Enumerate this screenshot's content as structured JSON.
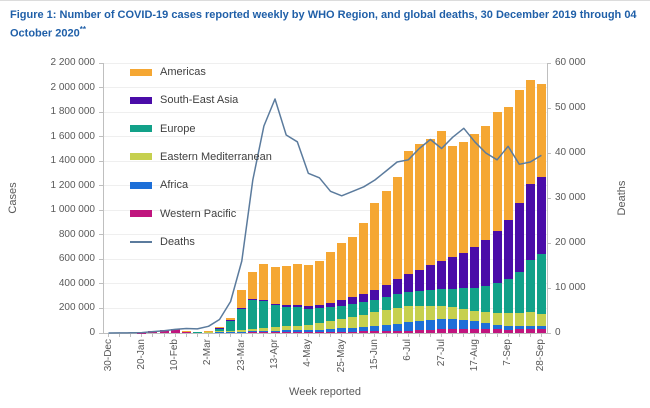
{
  "figure": {
    "title": "Figure 1: Number of COVID-19 cases reported weekly by WHO Region, and global deaths, 30 December 2019 through 04 October 2020",
    "title_superscript": "**",
    "title_color": "#1F5FA8"
  },
  "chart_data": {
    "type": "bar",
    "stacked": true,
    "title": "Number of COVID-19 cases reported weekly by WHO Region, and global deaths",
    "xlabel": "Week reported",
    "ylabel_left": "Cases",
    "ylabel_right": "Deaths",
    "ylim_left": [
      0,
      2200000
    ],
    "yticks_left": [
      0,
      200000,
      400000,
      600000,
      800000,
      1000000,
      1200000,
      1400000,
      1600000,
      1800000,
      2000000,
      2200000
    ],
    "ylim_right": [
      0,
      60000
    ],
    "yticks_right": [
      0,
      10000,
      20000,
      30000,
      40000,
      50000,
      60000
    ],
    "grid": "faint horizontal gridlines",
    "legend_position": "inside top-left",
    "x": [
      "30-Dec",
      "6-Jan",
      "13-Jan",
      "20-Jan",
      "27-Jan",
      "3-Feb",
      "10-Feb",
      "17-Feb",
      "24-Feb",
      "2-Mar",
      "9-Mar",
      "16-Mar",
      "23-Mar",
      "30-Mar",
      "6-Apr",
      "13-Apr",
      "20-Apr",
      "27-Apr",
      "4-May",
      "11-May",
      "18-May",
      "25-May",
      "1-Jun",
      "8-Jun",
      "15-Jun",
      "22-Jun",
      "29-Jun",
      "6-Jul",
      "13-Jul",
      "20-Jul",
      "27-Jul",
      "3-Aug",
      "10-Aug",
      "17-Aug",
      "24-Aug",
      "31-Aug",
      "7-Sep",
      "14-Sep",
      "21-Sep",
      "28-Sep"
    ],
    "xticks_shown": [
      "30-Dec",
      "20-Jan",
      "10-Feb",
      "2-Mar",
      "23-Mar",
      "13-Apr",
      "4-May",
      "25-May",
      "15-Jun",
      "6-Jul",
      "27-Jul",
      "17-Aug",
      "7-Sep",
      "28-Sep"
    ],
    "xtick_every_n": 3,
    "stack_order_bottom_to_top": [
      "Western Pacific",
      "Africa",
      "Eastern Mediterranean",
      "Europe",
      "South-East Asia",
      "Americas"
    ],
    "series": [
      {
        "name": "Americas",
        "type": "bar",
        "color": "#F5A733",
        "values": [
          0,
          0,
          100,
          100,
          100,
          200,
          300,
          400,
          500,
          1500,
          5000,
          15000,
          150000,
          227000,
          288000,
          296000,
          322000,
          337000,
          335000,
          362000,
          416000,
          463000,
          489000,
          580000,
          707000,
          768000,
          833000,
          998000,
          1028000,
          1029000,
          1060000,
          900000,
          907000,
          923000,
          930000,
          966000,
          919000,
          924000,
          842000,
          761000
        ]
      },
      {
        "name": "South-East Asia",
        "type": "bar",
        "color": "#4A0CA8",
        "values": [
          0,
          0,
          0,
          0,
          0,
          100,
          100,
          100,
          200,
          500,
          1000,
          2000,
          5000,
          8000,
          10000,
          12000,
          15000,
          18000,
          22000,
          28000,
          35000,
          45000,
          55000,
          70000,
          85000,
          100000,
          120000,
          145000,
          170000,
          200000,
          230000,
          260000,
          290000,
          330000,
          380000,
          430000,
          480000,
          560000,
          625000,
          625000
        ]
      },
      {
        "name": "Europe",
        "type": "bar",
        "color": "#12A189",
        "values": [
          0,
          0,
          0,
          0,
          100,
          200,
          300,
          500,
          2000,
          5000,
          30000,
          90000,
          170000,
          230000,
          220000,
          180000,
          160000,
          150000,
          130000,
          120000,
          115000,
          110000,
          105000,
          100000,
          100000,
          105000,
          110000,
          115000,
          120000,
          130000,
          140000,
          150000,
          165000,
          185000,
          210000,
          240000,
          280000,
          330000,
          420000,
          490000
        ]
      },
      {
        "name": "Eastern Mediterranean",
        "type": "bar",
        "color": "#C6D04F",
        "values": [
          0,
          0,
          0,
          0,
          0,
          100,
          200,
          500,
          1000,
          4000,
          7000,
          9000,
          14000,
          20000,
          25000,
          28000,
          32000,
          38000,
          44000,
          52000,
          62000,
          75000,
          88000,
          100000,
          110000,
          120000,
          130000,
          135000,
          125000,
          115000,
          105000,
          95000,
          90000,
          88000,
          90000,
          95000,
          100000,
          108000,
          115000,
          95000
        ]
      },
      {
        "name": "Africa",
        "type": "bar",
        "color": "#1D6FD8",
        "values": [
          0,
          0,
          0,
          0,
          0,
          0,
          0,
          100,
          200,
          300,
          1000,
          2000,
          4000,
          7000,
          9000,
          10000,
          12000,
          14000,
          16000,
          19000,
          22000,
          26000,
          31000,
          37000,
          44000,
          52000,
          60000,
          68000,
          75000,
          80000,
          85000,
          82000,
          74000,
          62000,
          50000,
          40000,
          33000,
          28000,
          25000,
          23000
        ]
      },
      {
        "name": "Western Pacific",
        "type": "bar",
        "color": "#C0157E",
        "values": [
          50,
          100,
          300,
          2800,
          14000,
          26000,
          30000,
          11000,
          5000,
          6000,
          5000,
          6000,
          7000,
          8000,
          8000,
          9000,
          9000,
          8000,
          8000,
          9000,
          10000,
          11000,
          12000,
          13000,
          14000,
          15000,
          17000,
          19000,
          22000,
          26000,
          30000,
          33000,
          34000,
          32000,
          30000,
          29000,
          28000,
          30000,
          33000,
          36000
        ]
      },
      {
        "name": "Deaths",
        "type": "line",
        "axis": "right",
        "color": "#5B7B9D",
        "values": [
          0,
          20,
          50,
          100,
          300,
          500,
          800,
          1000,
          900,
          1500,
          3000,
          7000,
          16000,
          34000,
          46000,
          52000,
          44000,
          42500,
          35500,
          34500,
          31500,
          30500,
          31500,
          32500,
          34000,
          36000,
          38000,
          38500,
          41000,
          43000,
          41000,
          43500,
          45500,
          42500,
          40000,
          38500,
          41500,
          37500,
          38000,
          39500
        ]
      }
    ]
  }
}
